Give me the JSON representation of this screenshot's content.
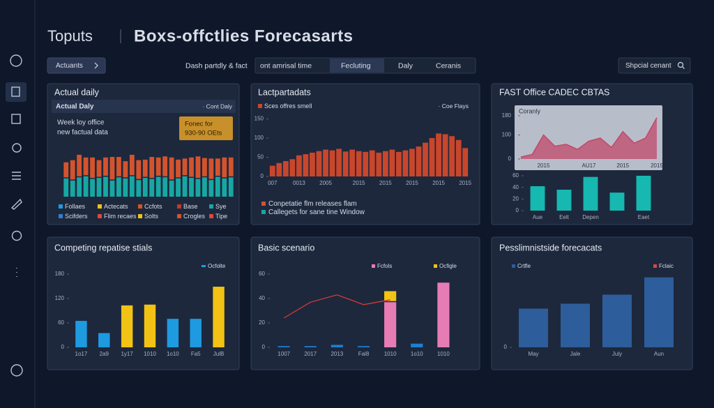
{
  "header": {
    "logo": "Toputs",
    "title": "Boxs-offctlies Forecasarts"
  },
  "toolbar": {
    "button": "Actuants",
    "label": "Dash partdly & fact",
    "tabs": [
      "ont amrisal time",
      "Fecluting",
      "Daly",
      "Ceranis"
    ],
    "search": "Shpcial cenant"
  },
  "chart_data": [
    {
      "type": "bar",
      "stacked": true,
      "title": "Actual daily",
      "subtitle": "Actual Daly",
      "note": "· Cont Daly",
      "text": [
        "Week loy office",
        "new factual data"
      ],
      "annotation": [
        "Fonec for",
        "930-90 OEts"
      ],
      "categories": [
        null,
        null,
        null,
        null,
        null,
        null,
        null,
        null,
        null,
        null,
        null,
        null,
        null,
        null,
        null,
        null,
        null,
        null,
        null,
        null,
        null,
        null,
        null,
        null,
        null,
        null
      ],
      "ylim": [
        0,
        100
      ],
      "series": [
        {
          "color": "#17a7a3",
          "values": [
            34,
            30,
            36,
            38,
            33,
            35,
            37,
            30,
            36,
            34,
            38,
            31,
            35,
            33,
            37,
            36,
            30,
            34,
            38,
            35,
            33,
            36,
            31,
            37,
            34,
            36
          ]
        },
        {
          "color": "#d4532d",
          "values": [
            30,
            38,
            42,
            35,
            40,
            33,
            36,
            44,
            38,
            32,
            40,
            37,
            34,
            41,
            36,
            39,
            43,
            35,
            33,
            38,
            42,
            36,
            40,
            34,
            39,
            37
          ]
        }
      ],
      "legend": [
        {
          "name": "Follaes",
          "color": "#1e9be0"
        },
        {
          "name": "Actecats",
          "color": "#f2c314"
        },
        {
          "name": "Ccfots",
          "color": "#d4532d"
        },
        {
          "name": "Base",
          "color": "#c0392b"
        },
        {
          "name": "Sye",
          "color": "#17a7a3"
        },
        {
          "name": "Scifders",
          "color": "#2f7fd0"
        },
        {
          "name": "Flim recaes",
          "color": "#e0473a"
        },
        {
          "name": "Solts",
          "color": "#f2c314"
        },
        {
          "name": "Crogles",
          "color": "#d4532d"
        },
        {
          "name": "Tipe",
          "color": "#e0473a"
        }
      ]
    },
    {
      "type": "bar",
      "title": "Lactpartadats",
      "note": "· Coe Flays",
      "categories": [
        "007",
        null,
        null,
        null,
        "0013",
        null,
        null,
        null,
        "2005",
        null,
        null,
        null,
        null,
        "2015",
        null,
        null,
        null,
        "2015",
        null,
        null,
        null,
        "2015",
        null,
        null,
        null,
        "2015",
        null,
        null,
        null,
        "2015"
      ],
      "ylim": [
        0,
        160
      ],
      "yticks": [
        0,
        50,
        100,
        150
      ],
      "series": [
        {
          "name": "Sces offres smell",
          "color": "#c8462c",
          "values": [
            28,
            35,
            40,
            45,
            55,
            58,
            62,
            66,
            70,
            68,
            72,
            65,
            70,
            66,
            64,
            68,
            62,
            66,
            70,
            64,
            68,
            72,
            78,
            88,
            100,
            112,
            110,
            105,
            95,
            74
          ]
        }
      ],
      "legend": [
        {
          "name": "Conpetatie flm releases flam",
          "color": "#d4532d"
        },
        {
          "name": "Callegets for sane tine Window",
          "color": "#17a7a3"
        }
      ]
    },
    {
      "type": "area",
      "title": "FAST Office CADEC CBTAS",
      "subtitle": "Coranly",
      "categories": [
        null,
        null,
        "2015",
        null,
        null,
        null,
        "AU17",
        null,
        null,
        "2015",
        null,
        null,
        "2015"
      ],
      "ylim": [
        0,
        180
      ],
      "yticks": [
        0,
        100,
        180
      ],
      "series": [
        {
          "color": "#c24a6a",
          "values": [
            8,
            19,
            100,
            53,
            61,
            40,
            74,
            87,
            48,
            114,
            66,
            87,
            172
          ]
        }
      ]
    },
    {
      "type": "bar",
      "categories": [
        "Aue",
        "Eelt",
        "Depen",
        null,
        "Eaet"
      ],
      "ylim": [
        0,
        60
      ],
      "yticks": [
        0,
        20,
        40,
        60
      ],
      "series": [
        {
          "color": "#16b8b0",
          "values": [
            42,
            36,
            58,
            31,
            60
          ]
        }
      ]
    },
    {
      "type": "bar",
      "title": "Competing repatise stials",
      "categories": [
        "1o17",
        "2a9",
        "1y17",
        "1010",
        "1o10",
        "Fa5",
        "JulB"
      ],
      "ylim": [
        0,
        180
      ],
      "yticks": [
        0,
        60,
        120,
        180
      ],
      "series": [
        {
          "name": "Ocfolte",
          "color": "#1e9be0",
          "values": [
            65,
            35,
            103,
            105,
            70,
            70,
            149
          ],
          "colors": [
            "#1e9be0",
            "#1e9be0",
            "#f2c314",
            "#f2c314",
            "#1e9be0",
            "#1e9be0",
            "#f2c314"
          ]
        }
      ]
    },
    {
      "type": "bar",
      "stacked": true,
      "title": "Basic scenario",
      "categories": [
        "1007",
        "2017",
        "2013",
        "Fal8",
        "1010",
        "1o10",
        "1010"
      ],
      "ylim": [
        0,
        60
      ],
      "yticks": [
        0,
        20,
        40,
        60
      ],
      "series": [
        {
          "name": "Fcfols",
          "color": "#e77cb5",
          "values": [
            null,
            null,
            null,
            null,
            37,
            null,
            53
          ]
        },
        {
          "name": "Ocfigle",
          "color": "#f2c314",
          "values": [
            null,
            null,
            null,
            null,
            9,
            null,
            null
          ]
        },
        {
          "color": "#1e7fd0",
          "values": [
            1,
            1,
            2,
            1,
            null,
            3,
            null
          ]
        },
        {
          "type": "line",
          "color": "#d93a35",
          "values": [
            24,
            37,
            43,
            35,
            39,
            null,
            null
          ]
        }
      ]
    },
    {
      "type": "bar",
      "title": "Pesslimnistside forecacats",
      "categories": [
        "May",
        "Jale",
        "July",
        "Aun"
      ],
      "ylim": [
        0,
        100
      ],
      "yticks": [
        0
      ],
      "series": [
        {
          "name": "Crtfle",
          "color": "#2d5d9a",
          "values": [
            47,
            53,
            64,
            85
          ]
        }
      ],
      "legend": [
        {
          "name": "Fclaic",
          "color": "#d9483f"
        }
      ]
    }
  ]
}
